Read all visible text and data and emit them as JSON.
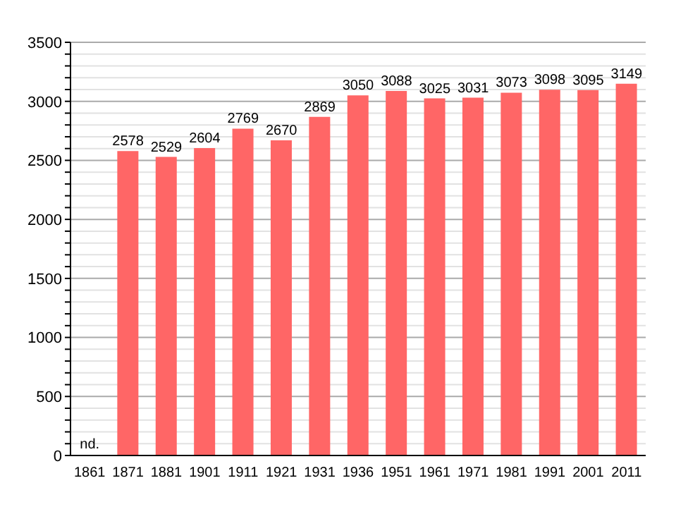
{
  "chart_data": {
    "type": "bar",
    "categories": [
      "1861",
      "1871",
      "1881",
      "1901",
      "1911",
      "1921",
      "1931",
      "1936",
      "1951",
      "1961",
      "1971",
      "1981",
      "1991",
      "2001",
      "2011"
    ],
    "values": [
      null,
      2578,
      2529,
      2604,
      2769,
      2670,
      2869,
      3050,
      3088,
      3025,
      3031,
      3073,
      3098,
      3095,
      3149
    ],
    "value_labels": [
      "nd.",
      "2578",
      "2529",
      "2604",
      "2769",
      "2670",
      "2869",
      "3050",
      "3088",
      "3025",
      "3031",
      "3073",
      "3098",
      "3095",
      "3149"
    ],
    "color": "#ff6666",
    "ylim": [
      0,
      3500
    ],
    "yticks": [
      0,
      {
        "value": 100,
        "label": null
      },
      {
        "value": 200,
        "label": null
      },
      {
        "value": 300,
        "label": null
      },
      {
        "value": 400,
        "label": null
      },
      500,
      {
        "value": 600,
        "label": null
      },
      {
        "value": 700,
        "label": null
      },
      {
        "value": 800,
        "label": null
      },
      {
        "value": 900,
        "label": null
      },
      1000,
      {
        "value": 1100,
        "label": null
      },
      {
        "value": 1200,
        "label": null
      },
      {
        "value": 1300,
        "label": null
      },
      {
        "value": 1400,
        "label": null
      },
      1500,
      {
        "value": 1600,
        "label": null
      },
      {
        "value": 1700,
        "label": null
      },
      {
        "value": 1800,
        "label": null
      },
      {
        "value": 1900,
        "label": null
      },
      2000,
      {
        "value": 2100,
        "label": null
      },
      {
        "value": 2200,
        "label": null
      },
      {
        "value": 2300,
        "label": null
      },
      {
        "value": 2400,
        "label": null
      },
      2500,
      {
        "value": 2600,
        "label": null
      },
      {
        "value": 2700,
        "label": null
      },
      {
        "value": 2800,
        "label": null
      },
      {
        "value": 2900,
        "label": null
      },
      3000,
      {
        "value": 3100,
        "label": null
      },
      {
        "value": 3200,
        "label": null
      },
      {
        "value": 3300,
        "label": null
      },
      {
        "value": 3400,
        "label": null
      },
      3500
    ],
    "grid": "y"
  }
}
